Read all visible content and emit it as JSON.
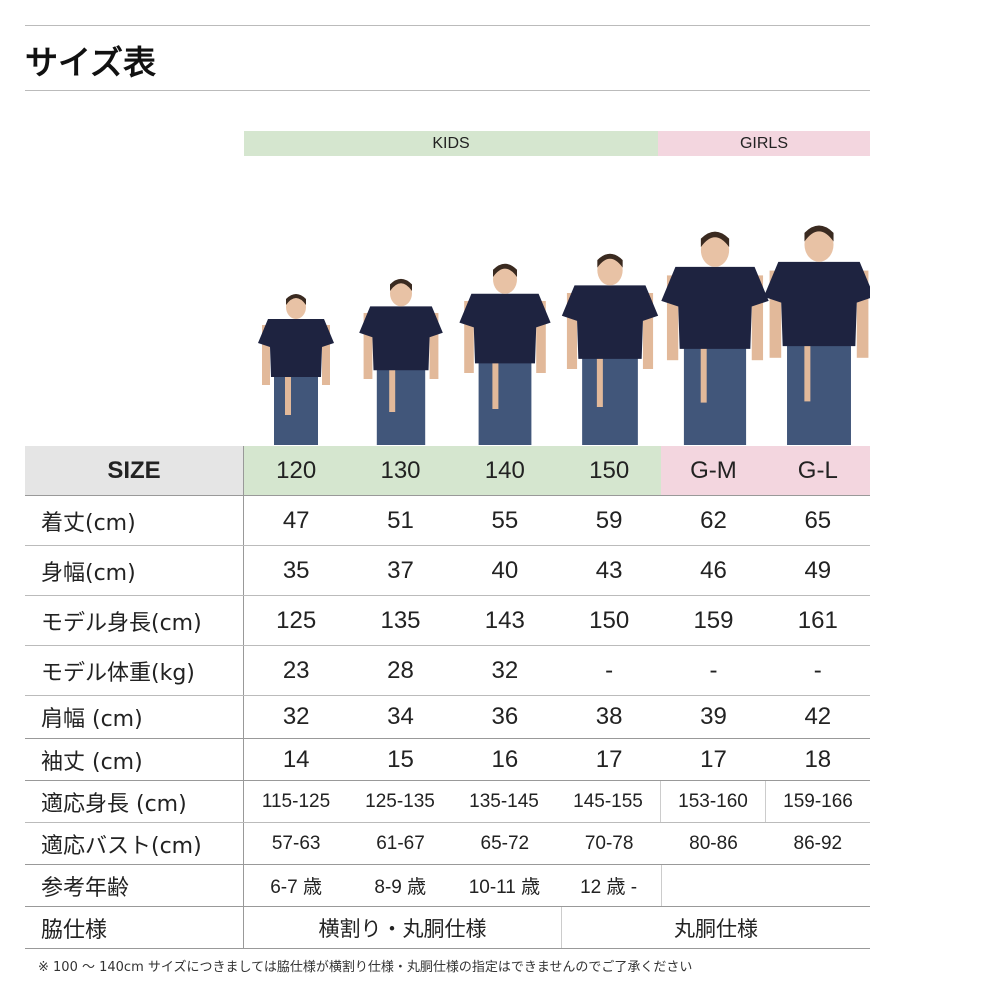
{
  "title": "サイズ表",
  "bands": {
    "kids": "KIDS",
    "girls": "GIRLS"
  },
  "colors": {
    "kids": "#d5e6cf",
    "girls": "#f3d6df",
    "size_header": "#e5e5e5"
  },
  "size_row": {
    "label": "SIZE",
    "sizes": [
      "120",
      "130",
      "140",
      "150",
      "G-M",
      "G-L"
    ]
  },
  "rows": [
    {
      "label": "着丈(cm)",
      "values": [
        "47",
        "51",
        "55",
        "59",
        "62",
        "65"
      ]
    },
    {
      "label": "身幅(cm)",
      "values": [
        "35",
        "37",
        "40",
        "43",
        "46",
        "49"
      ]
    },
    {
      "label": "モデル身長(cm)",
      "values": [
        "125",
        "135",
        "143",
        "150",
        "159",
        "161"
      ]
    },
    {
      "label": "モデル体重(kg)",
      "values": [
        "23",
        "28",
        "32",
        "-",
        "-",
        "-"
      ]
    },
    {
      "label": "肩幅 (cm)",
      "values": [
        "32",
        "34",
        "36",
        "38",
        "39",
        "42"
      ]
    },
    {
      "label": "袖丈 (cm)",
      "values": [
        "14",
        "15",
        "16",
        "17",
        "17",
        "18"
      ]
    },
    {
      "label": "適応身長 (cm)",
      "values": [
        "115-125",
        "125-135",
        "135-145",
        "145-155",
        "153-160",
        "159-166"
      ]
    },
    {
      "label": "適応バスト(cm)",
      "values": [
        "57-63",
        "61-67",
        "65-72",
        "70-78",
        "80-86",
        "86-92"
      ]
    }
  ],
  "age_row": {
    "label": "参考年齢",
    "values": [
      "6-7 歳",
      "8-9 歳",
      "10-11 歳",
      "12 歳 -"
    ]
  },
  "side_row": {
    "label": "脇仕様",
    "values": [
      "横割り・丸胴仕様",
      "丸胴仕様"
    ]
  },
  "note": "※ 100 〜 140cm サイズにつきましては脇仕様が横割り仕様・丸胴仕様の指定はできませんのでご了承ください"
}
